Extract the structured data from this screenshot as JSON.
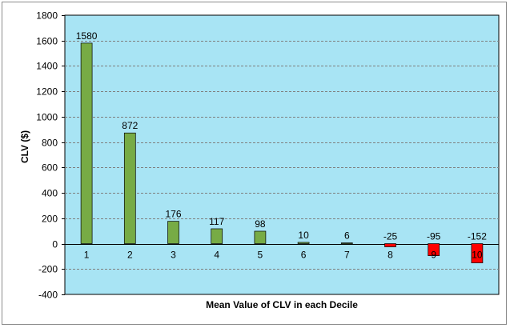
{
  "chart_data": {
    "type": "bar",
    "title": "",
    "xlabel": "Mean Value of CLV in each Decile",
    "ylabel": "CLV ($)",
    "ylim": [
      -400,
      1800
    ],
    "ytick_step": 200,
    "grid": true,
    "legend": "none",
    "categories": [
      "1",
      "2",
      "3",
      "4",
      "5",
      "6",
      "7",
      "8",
      "9",
      "10"
    ],
    "values": [
      1580,
      872,
      176,
      117,
      98,
      10,
      6,
      -25,
      -95,
      -152
    ],
    "data_labels": [
      "1580",
      "872",
      "176",
      "117",
      "98",
      "10",
      "6",
      "-25",
      "-95",
      "-152"
    ],
    "colors": {
      "plot_background": "#a8e4f4",
      "positive_bar": "#77ab45",
      "negative_bar": "#ff0000",
      "bar_border": "#000000",
      "gridline": "#7f7f7f"
    }
  }
}
